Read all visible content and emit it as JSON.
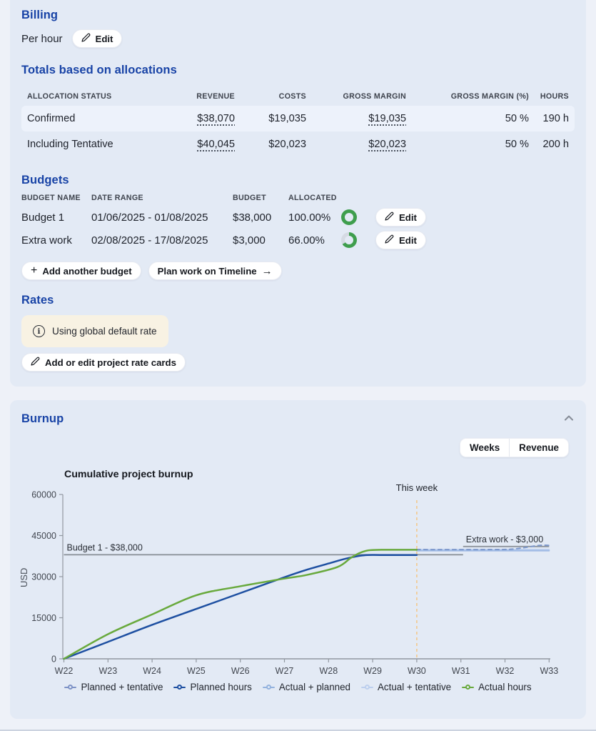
{
  "billing": {
    "title": "Billing",
    "mode": "Per hour",
    "edit_label": "Edit"
  },
  "totals": {
    "title": "Totals based on allocations",
    "columns": [
      "ALLOCATION STATUS",
      "REVENUE",
      "COSTS",
      "GROSS MARGIN",
      "GROSS MARGIN (%)",
      "HOURS"
    ],
    "rows": [
      {
        "status": "Confirmed",
        "revenue": "$38,070",
        "costs": "$19,035",
        "gross_margin": "$19,035",
        "gross_margin_pct": "50 %",
        "hours": "190 h"
      },
      {
        "status": "Including Tentative",
        "revenue": "$40,045",
        "costs": "$20,023",
        "gross_margin": "$20,023",
        "gross_margin_pct": "50 %",
        "hours": "200 h"
      }
    ]
  },
  "budgets": {
    "title": "Budgets",
    "columns": [
      "BUDGET NAME",
      "DATE RANGE",
      "BUDGET",
      "ALLOCATED"
    ],
    "rows": [
      {
        "name": "Budget 1",
        "date_range": "01/06/2025 - 01/08/2025",
        "budget": "$38,000",
        "allocated": "100.00%",
        "progress_pct": 100,
        "edit_label": "Edit"
      },
      {
        "name": "Extra work",
        "date_range": "02/08/2025 - 17/08/2025",
        "budget": "$3,000",
        "allocated": "66.00%",
        "progress_pct": 66,
        "edit_label": "Edit"
      }
    ],
    "add_button": "Add another budget",
    "plan_button": "Plan work on Timeline",
    "progress_color": "#3f9e4d",
    "progress_track": "#d5dae3"
  },
  "rates": {
    "title": "Rates",
    "info_text": "Using global default rate",
    "rate_cards_button": "Add or edit project rate cards"
  },
  "burnup": {
    "title": "Burnup",
    "toggle": {
      "left": "Weeks",
      "right": "Revenue"
    }
  },
  "icons": {
    "add_glyph": "+",
    "arrow_glyph": "→",
    "info_glyph": "i"
  },
  "chart_data": {
    "type": "line",
    "title": "Cumulative project burnup",
    "xlabel": "",
    "ylabel": "USD",
    "x_ticks": [
      "W22",
      "W23",
      "W24",
      "W25",
      "W26",
      "W27",
      "W28",
      "W29",
      "W30",
      "W31",
      "W32",
      "W33"
    ],
    "x_range": [
      22,
      33
    ],
    "ylim": [
      0,
      60000
    ],
    "y_ticks": [
      0,
      15000,
      30000,
      45000,
      60000
    ],
    "grid": false,
    "legend_position": "bottom",
    "this_week": {
      "label": "This week",
      "x": 30,
      "color": "#f3c98c"
    },
    "reference_lines": [
      {
        "label": "Budget 1 - $38,000",
        "value": 38000,
        "x_start": 22,
        "x_end": 31.05,
        "color": "#8d939b"
      },
      {
        "label": "Extra work - $3,000",
        "value": 41000,
        "x_start": 31.05,
        "x_end": 33,
        "color": "#8d939b"
      }
    ],
    "series": [
      {
        "name": "Actual + tentative",
        "color": "#c0d2f0",
        "dash": "solid",
        "width": 2,
        "points": [
          [
            30,
            39900
          ],
          [
            33,
            39900
          ]
        ]
      },
      {
        "name": "Actual + planned",
        "color": "#9db9e4",
        "dash": "solid",
        "width": 2,
        "points": [
          [
            30,
            39500
          ],
          [
            33,
            39500
          ]
        ]
      },
      {
        "name": "Planned + tentative",
        "color": "#7d98cc",
        "dash": "dashed",
        "width": 2,
        "points": [
          [
            30,
            39900
          ],
          [
            31.6,
            39900
          ],
          [
            32.2,
            40100
          ],
          [
            32.75,
            41350
          ],
          [
            33,
            41420
          ]
        ]
      },
      {
        "name": "Planned hours",
        "color": "#1d4fa1",
        "dash": "solid",
        "width": 2.5,
        "points": [
          [
            22,
            0
          ],
          [
            23,
            6200
          ],
          [
            24,
            12400
          ],
          [
            25,
            18200
          ],
          [
            26,
            24000
          ],
          [
            27,
            29800
          ],
          [
            27.5,
            32500
          ],
          [
            28,
            34800
          ],
          [
            28.4,
            36600
          ],
          [
            28.8,
            37800
          ],
          [
            29.2,
            37900
          ],
          [
            30,
            37900
          ]
        ]
      },
      {
        "name": "Actual hours",
        "color": "#68a93c",
        "dash": "solid",
        "width": 2.5,
        "points": [
          [
            22,
            0
          ],
          [
            23,
            9000
          ],
          [
            24,
            16200
          ],
          [
            25,
            23200
          ],
          [
            26,
            26500
          ],
          [
            27,
            29300
          ],
          [
            27.5,
            30600
          ],
          [
            28.2,
            33500
          ],
          [
            28.5,
            36800
          ],
          [
            28.7,
            38600
          ],
          [
            28.9,
            39600
          ],
          [
            29.2,
            39800
          ],
          [
            30,
            39800
          ]
        ]
      }
    ],
    "legend": [
      {
        "label": "Planned + tentative",
        "color": "#7d92c6"
      },
      {
        "label": "Planned hours",
        "color": "#1d4fa1"
      },
      {
        "label": "Actual + planned",
        "color": "#93b2de"
      },
      {
        "label": "Actual + tentative",
        "color": "#bccfee"
      },
      {
        "label": "Actual hours",
        "color": "#68a93c"
      }
    ]
  }
}
